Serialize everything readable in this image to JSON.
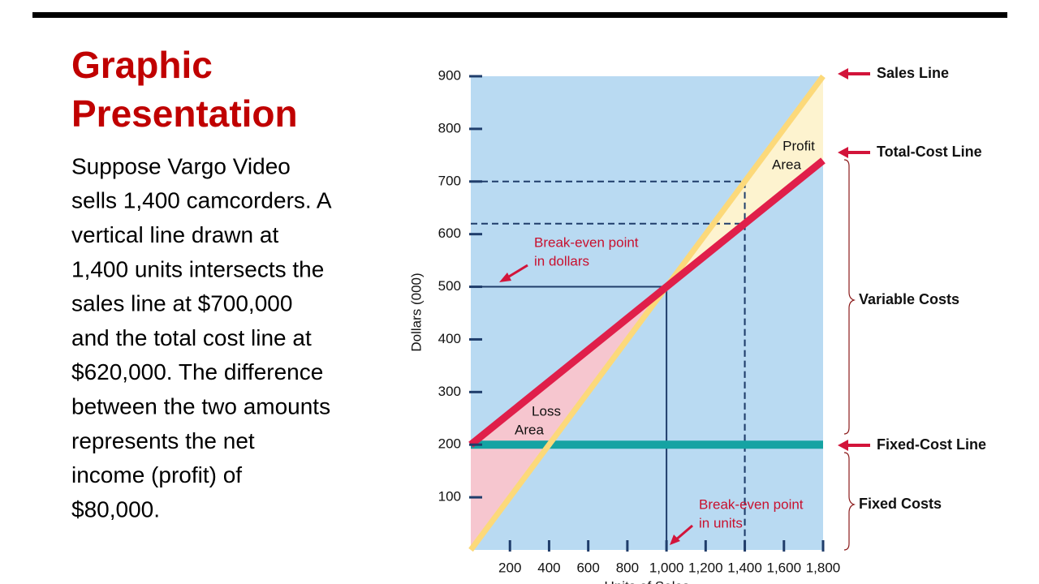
{
  "slide": {
    "title": [
      "Graphic",
      "Presentation"
    ],
    "body": [
      "Suppose Vargo Video",
      "sells 1,400 camcorders. A",
      "vertical line drawn at",
      "1,400 units intersects the",
      "sales line at $700,000",
      "and the total cost line at",
      "$620,000. The difference",
      "between the two amounts",
      "represents the net",
      "income (profit) of",
      "$80,000."
    ]
  },
  "chart_data": {
    "type": "line",
    "x": [
      0,
      1800
    ],
    "series": [
      {
        "name": "Sales Line",
        "color": "#fcd97a",
        "values": [
          0,
          900
        ]
      },
      {
        "name": "Total-Cost Line",
        "color": "#e01f4a",
        "values": [
          200,
          740
        ]
      },
      {
        "name": "Fixed-Cost Line",
        "color": "#15a3a3",
        "values": [
          200,
          200
        ]
      }
    ],
    "reference_points": [
      {
        "x": 1000,
        "y": 500
      },
      {
        "x": 1400,
        "y": 700
      },
      {
        "x": 1400,
        "y": 620
      }
    ],
    "xlim": [
      0,
      1800
    ],
    "xticks": [
      200,
      400,
      600,
      800,
      {
        "value": 1000,
        "label": "1,000"
      },
      {
        "value": 1200,
        "label": "1,200"
      },
      {
        "value": 1400,
        "label": "1,400"
      },
      {
        "value": 1600,
        "label": "1,600"
      },
      {
        "value": 1800,
        "label": "1,800"
      }
    ],
    "ylim": [
      0,
      900
    ],
    "yticks": [
      100,
      200,
      300,
      400,
      500,
      600,
      700,
      800,
      900
    ],
    "x_label": "Units of Sales",
    "y_label": "Dollars (000)",
    "annotations": {
      "profit_area": [
        "Profit",
        "Area"
      ],
      "loss_area": [
        "Loss",
        "Area"
      ],
      "break_even_dollars": [
        "Break-even point",
        "in dollars"
      ],
      "break_even_units": [
        "Break-even point",
        "in units"
      ],
      "variable_costs": "Variable Costs",
      "fixed_costs": "Fixed Costs"
    }
  }
}
